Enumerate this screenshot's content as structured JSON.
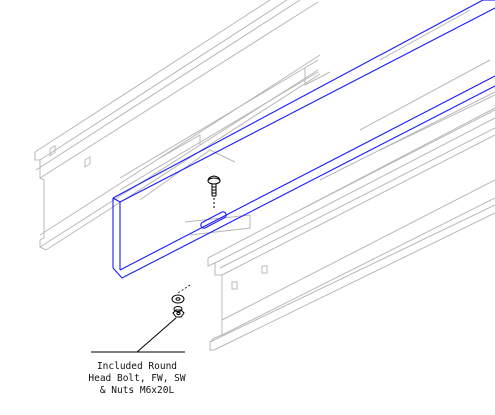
{
  "callout": {
    "lines": [
      "Included Round",
      "Head Bolt, FW, SW",
      "& Nuts M6x20L"
    ]
  },
  "colors": {
    "tray_outline": "#b8b8b8",
    "splice_plate": "#1a1aff",
    "hardware": "#000000",
    "leader": "#000000",
    "background": "#ffffff"
  },
  "icons": {
    "bolt": "round-head-bolt-icon",
    "washer": "flat-washer-icon",
    "nut": "hex-nut-icon"
  }
}
